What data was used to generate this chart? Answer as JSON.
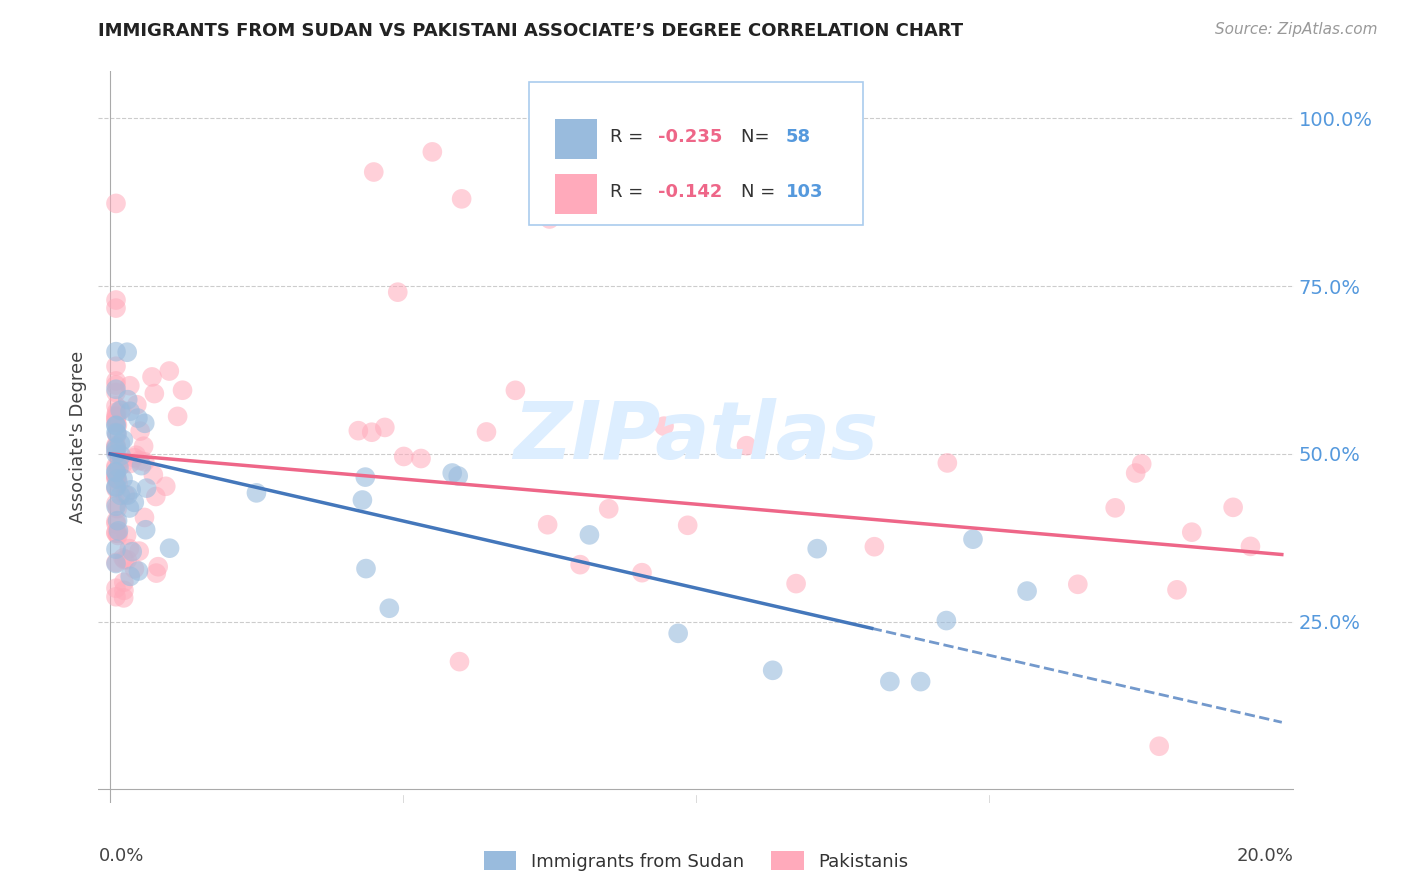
{
  "title": "IMMIGRANTS FROM SUDAN VS PAKISTANI ASSOCIATE’S DEGREE CORRELATION CHART",
  "source": "Source: ZipAtlas.com",
  "ylabel": "Associate's Degree",
  "y_tick_vals": [
    0.25,
    0.5,
    0.75,
    1.0
  ],
  "y_tick_labels": [
    "25.0%",
    "50.0%",
    "75.0%",
    "100.0%"
  ],
  "x_range": [
    0.0,
    0.2
  ],
  "y_range": [
    0.0,
    1.05
  ],
  "color_blue": "#99BBDD",
  "color_pink": "#FFAABB",
  "color_blue_line": "#4477BB",
  "color_pink_line": "#EE6688",
  "color_axis_label": "#5599DD",
  "watermark_color": "#DDEEFF",
  "background": "#FFFFFF",
  "legend_border": "#AACCEE",
  "grid_color": "#CCCCCC"
}
